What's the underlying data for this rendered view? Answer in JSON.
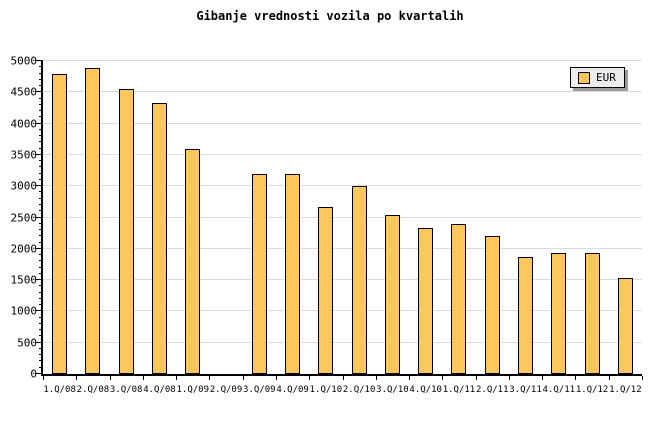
{
  "chart_data": {
    "type": "bar",
    "title": "Gibanje vrednosti vozila po kvartalih",
    "categories": [
      "1.Q/08",
      "2.Q/08",
      "3.Q/08",
      "4.Q/08",
      "1.Q/09",
      "2.Q/09",
      "3.Q/09",
      "4.Q/09",
      "1.Q/10",
      "2.Q/10",
      "3.Q/10",
      "4.Q/10",
      "1.Q/11",
      "2.Q/11",
      "3.Q/11",
      "4.Q/11",
      "1.Q/12",
      "1.Q/12"
    ],
    "series": [
      {
        "name": "EUR",
        "values": [
          4800,
          4890,
          4550,
          4330,
          3600,
          null,
          3200,
          3200,
          2660,
          3010,
          2540,
          2330,
          2400,
          2210,
          1870,
          1940,
          1940,
          1530
        ]
      }
    ],
    "xlabel": "",
    "ylabel": "",
    "ylim": [
      0,
      5000
    ],
    "yticks": [
      0,
      500,
      1000,
      1500,
      2000,
      2500,
      3000,
      3500,
      4000,
      4500,
      5000
    ],
    "minor_tick_step": 100,
    "grid": true,
    "legend_position": "top-right",
    "colors": {
      "bar_fill": "#FDC75E",
      "bar_border": "#000000",
      "grid": "#DCDCDC",
      "axis": "#000000",
      "text": "#000000",
      "background": "#FFFFFF",
      "legend_bg": "#EDEDED",
      "legend_shadow": "#9B9B9B"
    }
  },
  "legend": {
    "items": [
      {
        "label": "EUR",
        "swatch_color": "#FDC75E"
      }
    ]
  }
}
